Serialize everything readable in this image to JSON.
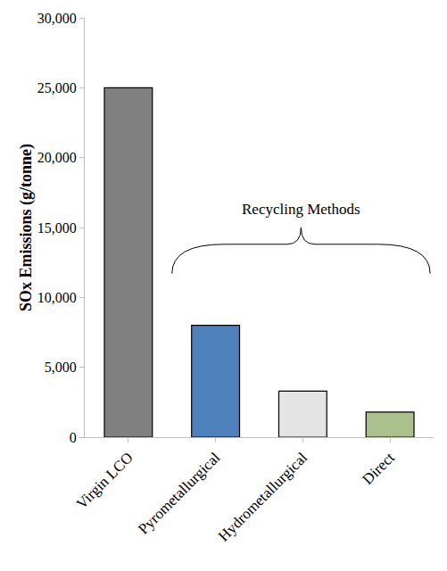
{
  "chart_data": {
    "type": "bar",
    "categories": [
      "Virgin LCO",
      "Pyrometallurgical",
      "Hydrometallurgical",
      "Direct"
    ],
    "values": [
      25000,
      8000,
      3300,
      1800
    ],
    "colors": [
      "#808080",
      "#4f81bd",
      "#e4e4e4",
      "#a9c18d"
    ],
    "ylabel": "SOx Emissions (g/tonne)",
    "ylim": [
      0,
      30000
    ],
    "yticks": [
      0,
      {
        "value": 5000,
        "label": "5,000"
      },
      {
        "value": 10000,
        "label": "10,000"
      },
      {
        "value": 15000,
        "label": "15,000"
      },
      {
        "value": 20000,
        "label": "20,000"
      },
      {
        "value": 25000,
        "label": "25,000"
      },
      {
        "value": 30000,
        "label": "30,000"
      }
    ],
    "grid": false,
    "annotations": [
      "Recycling Methods"
    ]
  }
}
